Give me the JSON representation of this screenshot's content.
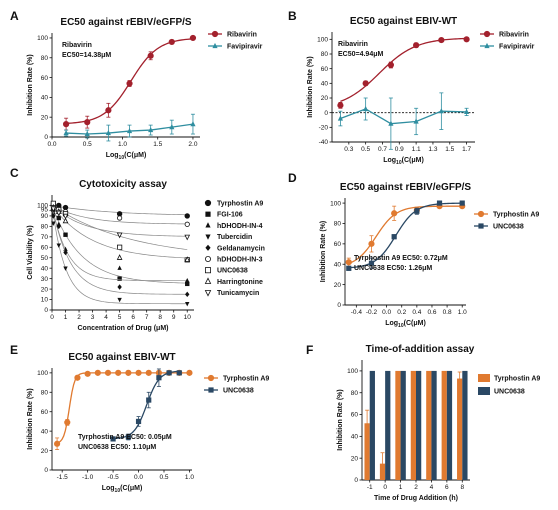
{
  "chart_data": [
    {
      "id": "A",
      "type": "line",
      "panel_label": "A",
      "title": "EC50 against rEBIV/eGFP/S",
      "xlabel": "Log10(C(μM)",
      "ylabel": "Inhibition Rate (%)",
      "xlim": [
        0,
        2.1
      ],
      "ylim": [
        0,
        105
      ],
      "xticks": [
        "0.0",
        "0.5",
        "1.0",
        "1.5",
        "2.0"
      ],
      "yticks": [
        "0",
        "20",
        "40",
        "60",
        "80",
        "100"
      ],
      "annotations": [
        "Ribavirin",
        "EC50=14.38μM"
      ],
      "series": [
        {
          "name": "Ribavirin",
          "color": "#a3212d",
          "marker": "circle",
          "x": [
            0.2,
            0.5,
            0.8,
            1.1,
            1.4,
            1.7,
            2.0
          ],
          "y": [
            13,
            15,
            27,
            54,
            82,
            96,
            100
          ],
          "err": [
            6,
            6,
            7,
            3,
            4,
            2,
            1
          ]
        },
        {
          "name": "Favipiravir",
          "color": "#2f8ea0",
          "marker": "triangle",
          "x": [
            0.2,
            0.5,
            0.8,
            1.1,
            1.4,
            1.7,
            2.0
          ],
          "y": [
            4,
            3,
            4,
            6,
            7,
            10,
            13
          ],
          "err": [
            3,
            4,
            8,
            6,
            5,
            7,
            10
          ]
        }
      ]
    },
    {
      "id": "B",
      "type": "line",
      "panel_label": "B",
      "title": "EC50 against EBIV-WT",
      "xlabel": "Log10(C(μM)",
      "ylabel": "Inhibition Rate (%)",
      "xlim": [
        0.1,
        1.8
      ],
      "ylim": [
        -40,
        110
      ],
      "xticks": [
        "0.3",
        "0.5",
        "0.7",
        "0.9",
        "1.1",
        "1.3",
        "1.5",
        "1.7"
      ],
      "yticks": [
        "-40",
        "-20",
        "0",
        "20",
        "40",
        "60",
        "80",
        "100"
      ],
      "annotations": [
        "Ribavirin",
        "EC50=4.94μM"
      ],
      "series": [
        {
          "name": "Ribavirin",
          "color": "#a3212d",
          "marker": "circle",
          "x": [
            0.2,
            0.5,
            0.8,
            1.1,
            1.4,
            1.7
          ],
          "y": [
            10,
            40,
            65,
            92,
            99,
            100
          ],
          "err": [
            4,
            3,
            4,
            3,
            1,
            1
          ]
        },
        {
          "name": "Favipiravir",
          "color": "#2f8ea0",
          "marker": "triangle",
          "x": [
            0.2,
            0.5,
            0.8,
            1.1,
            1.4,
            1.7
          ],
          "y": [
            -8,
            5,
            -15,
            -12,
            2,
            1
          ],
          "err": [
            10,
            15,
            35,
            18,
            25,
            5
          ]
        }
      ]
    },
    {
      "id": "C",
      "type": "scatter",
      "panel_label": "C",
      "title": "Cytotoxicity assay",
      "xlabel": "Concentration of Drug (μM)",
      "ylabel": "Cell Viability (%)",
      "xlim": [
        0,
        10.5
      ],
      "ylim": [
        0,
        110
      ],
      "xticks": [
        "0",
        "1",
        "2",
        "3",
        "4",
        "5",
        "6",
        "7",
        "8",
        "9",
        "10"
      ],
      "yticks": [
        "0",
        "10",
        "20",
        "30",
        "40",
        "50",
        "60",
        "70",
        "80",
        "90",
        "95",
        "100"
      ],
      "series": [
        {
          "name": "Tyrphostin A9",
          "marker": "circle-filled",
          "x": [
            0.1,
            0.5,
            1,
            5,
            10
          ],
          "y": [
            101,
            100,
            98,
            92,
            90
          ]
        },
        {
          "name": "FGI-106",
          "marker": "square-filled",
          "x": [
            0.1,
            0.5,
            1,
            5,
            10
          ],
          "y": [
            96,
            88,
            72,
            30,
            25
          ]
        },
        {
          "name": "hDHODH-IN-4",
          "marker": "triangle-up-filled",
          "x": [
            0.1,
            0.5,
            1,
            5,
            10
          ],
          "y": [
            93,
            82,
            58,
            40,
            28
          ]
        },
        {
          "name": "Tubercidin",
          "marker": "triangle-down-filled",
          "x": [
            0.1,
            0.5,
            1,
            5,
            10
          ],
          "y": [
            83,
            62,
            40,
            10,
            6
          ]
        },
        {
          "name": "Geldanamycin",
          "marker": "diamond-filled",
          "x": [
            0.1,
            0.5,
            1,
            5,
            10
          ],
          "y": [
            90,
            80,
            55,
            22,
            15
          ]
        },
        {
          "name": "hDHODH-IN-3",
          "marker": "circle-open",
          "x": [
            0.1,
            0.5,
            1,
            5,
            10
          ],
          "y": [
            99,
            96,
            94,
            88,
            82
          ]
        },
        {
          "name": "UNC0638",
          "marker": "square-open",
          "x": [
            0.1,
            0.5,
            1,
            5,
            10
          ],
          "y": [
            102,
            96,
            92,
            60,
            48
          ]
        },
        {
          "name": "Harringtonine",
          "marker": "triangle-up-open",
          "x": [
            0.1,
            0.5,
            1,
            5,
            10
          ],
          "y": [
            98,
            94,
            85,
            50,
            48
          ]
        },
        {
          "name": "Tunicamycin",
          "marker": "triangle-down-open",
          "x": [
            0.1,
            0.5,
            1,
            5,
            10
          ],
          "y": [
            97,
            93,
            90,
            72,
            70
          ]
        }
      ]
    },
    {
      "id": "D",
      "type": "line",
      "panel_label": "D",
      "title": "EC50 against rEBIV/eGFP/S",
      "xlabel": "Log10(C(μM)",
      "ylabel": "Inhibition Rate (%)",
      "xlim": [
        -0.55,
        1.05
      ],
      "ylim": [
        0,
        105
      ],
      "xticks": [
        "-0.4",
        "-0.2",
        "0.0",
        "0.2",
        "0.4",
        "0.6",
        "0.8",
        "1.0"
      ],
      "yticks": [
        "0",
        "20",
        "40",
        "60",
        "80",
        "100"
      ],
      "annotations": [
        "Tyrphostin A9   EC50: 0.72μM",
        "UNC0638   EC50: 1.26μM"
      ],
      "series": [
        {
          "name": "Tyrphostin A9",
          "color": "#e07a30",
          "marker": "circle",
          "x": [
            -0.5,
            -0.2,
            0.1,
            0.4,
            0.7,
            1.0
          ],
          "y": [
            42,
            60,
            90,
            93,
            97,
            97
          ],
          "err": [
            4,
            8,
            7,
            3,
            1,
            1
          ]
        },
        {
          "name": "UNC0638",
          "color": "#2a4864",
          "marker": "square",
          "x": [
            -0.5,
            -0.2,
            0.1,
            0.4,
            0.7,
            1.0
          ],
          "y": [
            36,
            41,
            67,
            92,
            100,
            100
          ],
          "err": [
            2,
            5,
            2,
            3,
            1,
            1
          ]
        }
      ]
    },
    {
      "id": "E",
      "type": "line",
      "panel_label": "E",
      "title": "EC50 against EBIV-WT",
      "xlabel": "Log10(C(μM)",
      "ylabel": "Inhibition Rate (%)",
      "xlim": [
        -1.7,
        1.05
      ],
      "ylim": [
        0,
        105
      ],
      "xticks": [
        "-1.5",
        "-1.0",
        "-0.5",
        "0.0",
        "0.5",
        "1.0"
      ],
      "yticks": [
        "0",
        "20",
        "40",
        "60",
        "80",
        "100"
      ],
      "annotations": [
        "Tyrphostin A9   EC50: 0.05μM",
        "UNC0638   EC50: 1.10μM"
      ],
      "series": [
        {
          "name": "Tyrphostin A9",
          "color": "#e07a30",
          "marker": "circle",
          "x": [
            -1.6,
            -1.4,
            -1.2,
            -1.0,
            -0.8,
            -0.6,
            -0.4,
            -0.2,
            0.0,
            0.2,
            0.4,
            0.6,
            0.8,
            1.0
          ],
          "y": [
            27,
            49,
            95,
            99,
            100,
            100,
            100,
            100,
            100,
            100,
            100,
            100,
            100,
            100
          ],
          "err": [
            6,
            3,
            2,
            1,
            0,
            0,
            0,
            0,
            0,
            0,
            0,
            0,
            0,
            0
          ]
        },
        {
          "name": "UNC0638",
          "color": "#2a4864",
          "marker": "square",
          "x": [
            -0.5,
            -0.2,
            0.0,
            0.2,
            0.4,
            0.6,
            0.8
          ],
          "y": [
            32,
            34,
            50,
            72,
            95,
            100,
            100
          ],
          "err": [
            2,
            3,
            5,
            8,
            9,
            1,
            1
          ]
        }
      ]
    },
    {
      "id": "F",
      "type": "bar",
      "panel_label": "F",
      "title": "Time-of-addition assay",
      "xlabel": "Time of Drug Addition (h)",
      "ylabel": "Inhibition Rate (%)",
      "ylim": [
        0,
        110
      ],
      "yticks": [
        "0",
        "20",
        "40",
        "60",
        "80",
        "100"
      ],
      "categories": [
        "-1",
        "0",
        "1",
        "2",
        "4",
        "6",
        "8"
      ],
      "series": [
        {
          "name": "Tyrphostin A9",
          "color": "#e07a30",
          "values": [
            52,
            15,
            100,
            100,
            100,
            100,
            93
          ],
          "err": [
            12,
            10,
            0,
            0,
            0,
            0,
            6
          ]
        },
        {
          "name": "UNC0638",
          "color": "#2a4864",
          "values": [
            100,
            100,
            100,
            100,
            100,
            100,
            100
          ],
          "err": [
            0,
            0,
            0,
            0,
            0,
            0,
            0
          ]
        }
      ]
    }
  ]
}
